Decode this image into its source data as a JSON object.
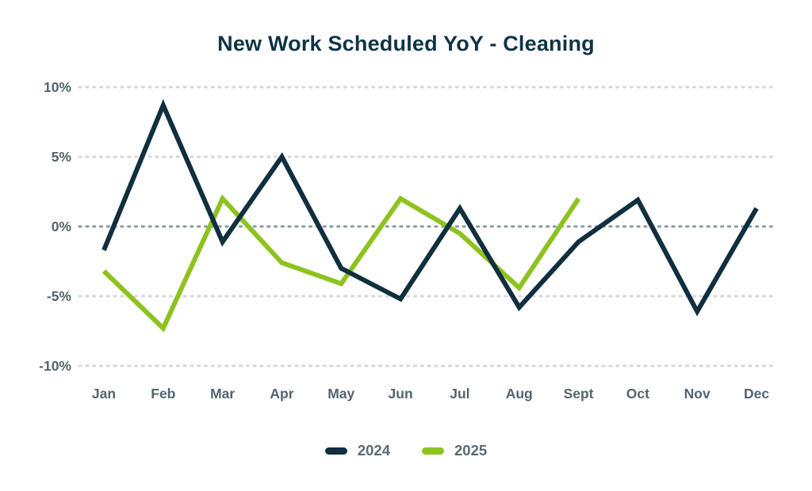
{
  "title": "New Work Scheduled YoY - Cleaning",
  "colors": {
    "title": "#0f3444",
    "series_2024": "#112f3e",
    "series_2025": "#8dc21f",
    "grid_line": "#d7d9da",
    "zero_line": "#8b99a2",
    "axis_label": "#54646e",
    "legend_label": "#5b6a74",
    "background": "#ffffff"
  },
  "chart_data": {
    "type": "line",
    "title": "New Work Scheduled YoY - Cleaning",
    "categories": [
      "Jan",
      "Feb",
      "Mar",
      "Apr",
      "May",
      "Jun",
      "Jul",
      "Aug",
      "Sept",
      "Oct",
      "Nov",
      "Dec"
    ],
    "series": [
      {
        "name": "2024",
        "color_key": "series_2024",
        "values": [
          -1.7,
          8.7,
          -1.1,
          5.0,
          -3.0,
          -5.2,
          1.3,
          -5.8,
          -1.1,
          1.9,
          -6.1,
          1.3
        ]
      },
      {
        "name": "2025",
        "color_key": "series_2025",
        "values": [
          -3.2,
          -7.3,
          2.0,
          -2.6,
          -4.1,
          2.0,
          -0.5,
          -4.4,
          2.0
        ]
      }
    ],
    "ylabel_ticks": [
      "10%",
      "5%",
      "0%",
      "-5%",
      "-10%"
    ],
    "ytick_values": [
      10,
      5,
      0,
      -5,
      -10
    ],
    "ylim": [
      -10,
      10
    ],
    "xlabel": "",
    "ylabel": "",
    "grid": "horizontal-dotted",
    "zero_line_emphasized": true,
    "legend_position": "bottom"
  },
  "legend": {
    "items": [
      {
        "label": "2024"
      },
      {
        "label": "2025"
      }
    ]
  }
}
